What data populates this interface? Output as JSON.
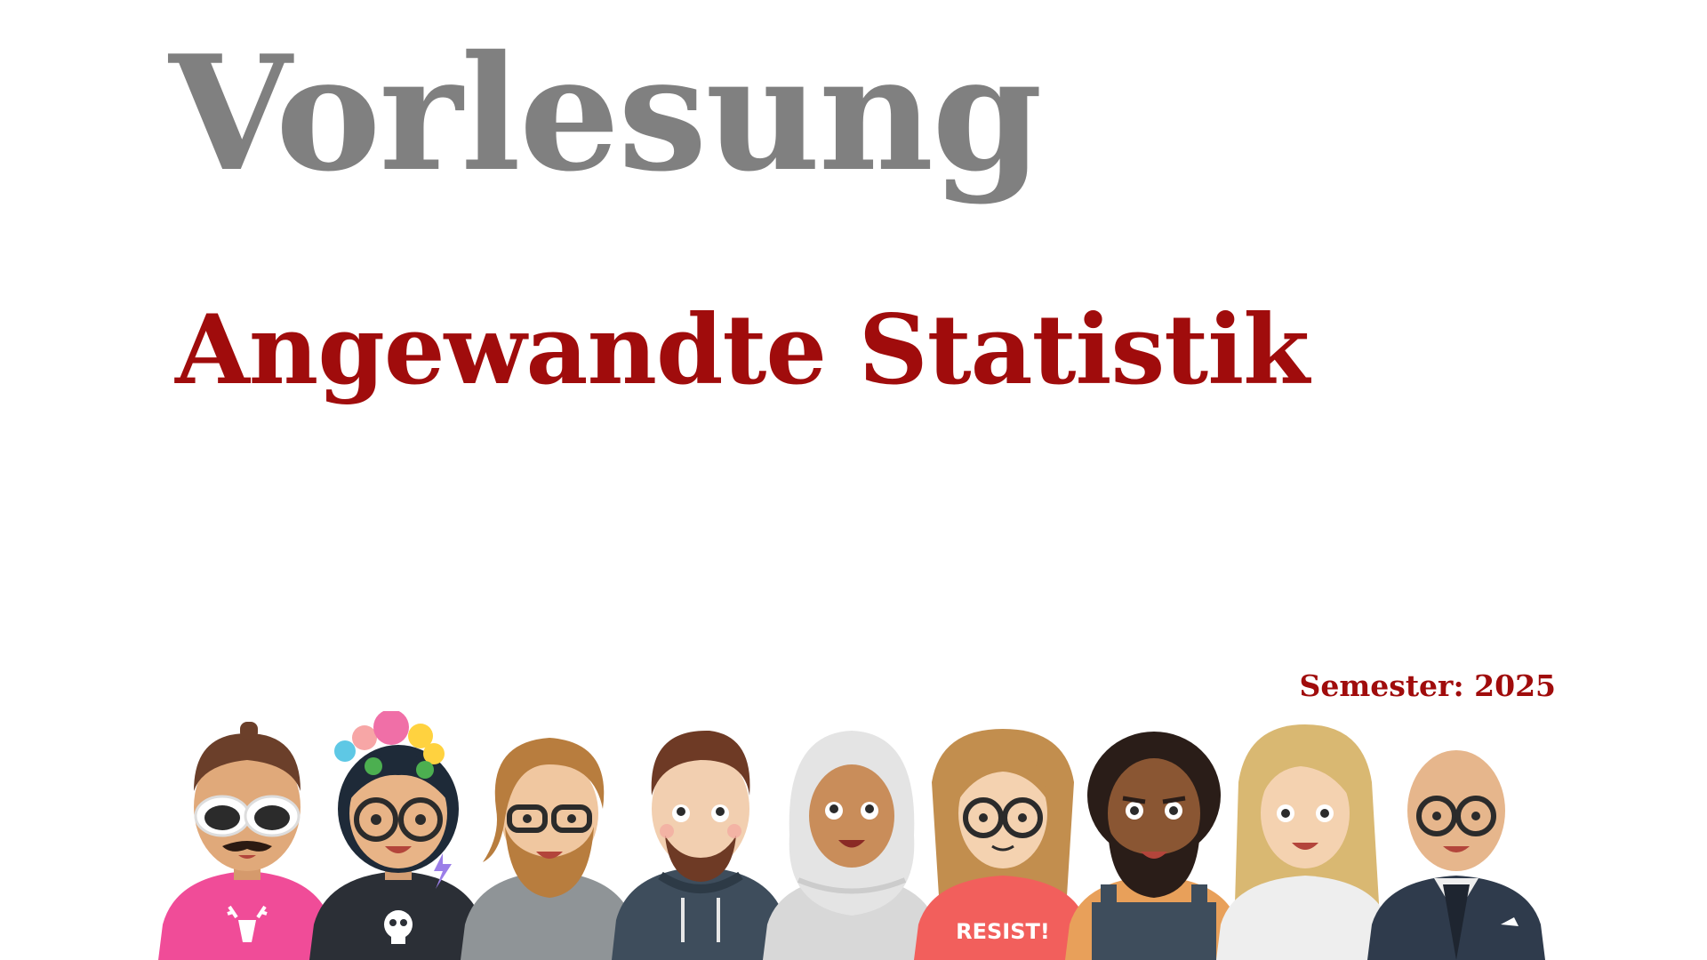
{
  "slide": {
    "title": "Vorlesung",
    "subtitle": "Angewandte Statistik",
    "semester_label": "Semester:",
    "semester_value": "2025"
  },
  "illustration": {
    "shirt_print": "RESIST!",
    "people": [
      {
        "name": "person-white-sunglasses",
        "skin": "#e0a97a",
        "hair": "#6b3f2a",
        "shirt": "#f04c98"
      },
      {
        "name": "person-flower-crown",
        "skin": "#e8b487",
        "hair": "#1e2a38",
        "shirt": "#2b2f36"
      },
      {
        "name": "person-long-beard",
        "skin": "#f0c7a0",
        "hair": "#b87d3e",
        "shirt": "#8f9497"
      },
      {
        "name": "person-hoodie",
        "skin": "#f2cfb0",
        "hair": "#6e3a25",
        "shirt": "#3e4d5c"
      },
      {
        "name": "person-hijab",
        "skin": "#c98d5a",
        "hair": "#e4e4e4",
        "shirt": "#e4e4e4"
      },
      {
        "name": "person-resist-shirt",
        "skin": "#f4d2b0",
        "hair": "#c28e4e",
        "shirt": "#f25f5c"
      },
      {
        "name": "person-curly-beard",
        "skin": "#8a5633",
        "hair": "#2a1d18",
        "shirt": "#e8a05a"
      },
      {
        "name": "person-blonde",
        "skin": "#f4d2b0",
        "hair": "#d9b872",
        "shirt": "#eeeeee"
      },
      {
        "name": "person-bald-glasses",
        "skin": "#e6b68c",
        "hair": "#e6b68c",
        "shirt": "#2f3b4c"
      }
    ]
  },
  "colors": {
    "title": "#808080",
    "accent": "#a00c0c",
    "background": "#ffffff"
  }
}
